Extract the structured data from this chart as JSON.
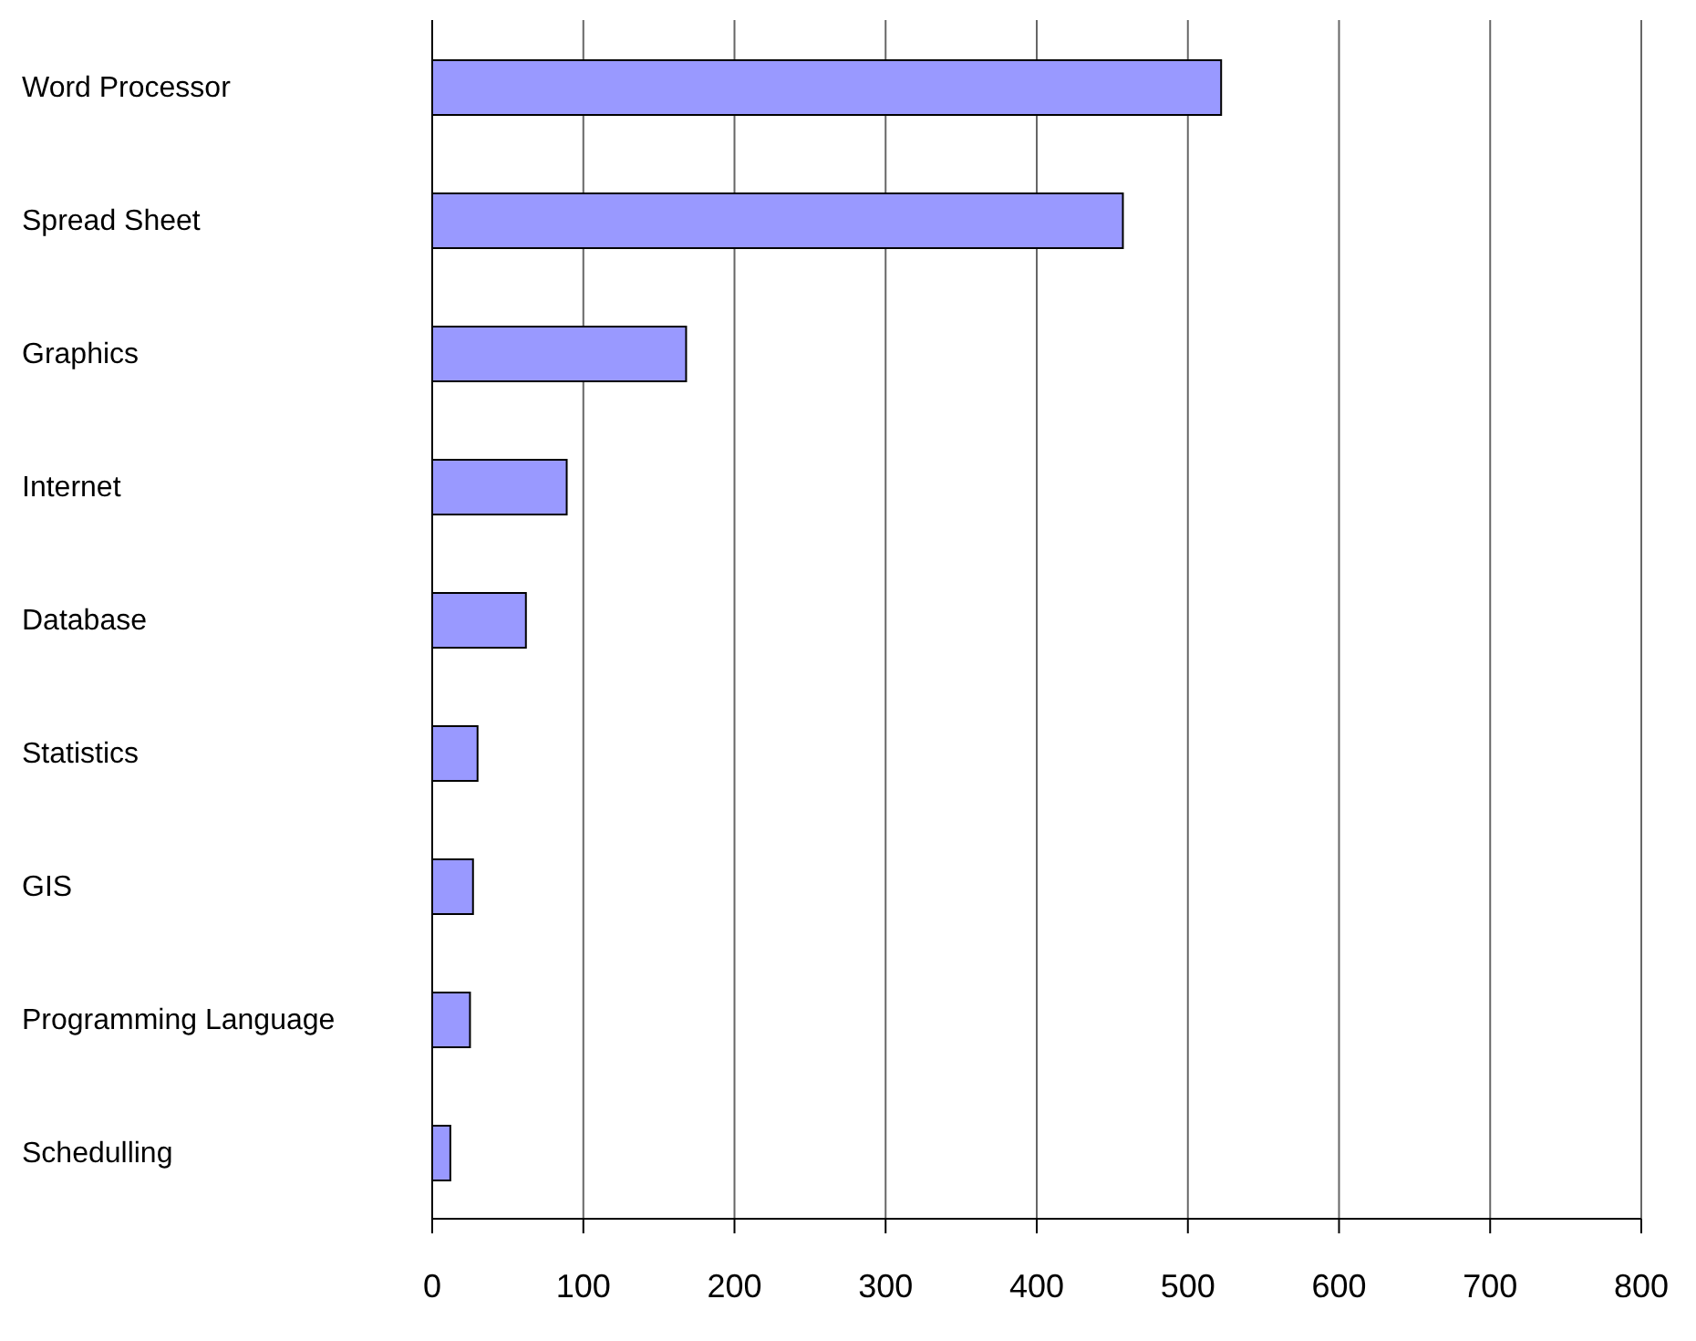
{
  "chart_data": {
    "type": "bar",
    "orientation": "horizontal",
    "categories": [
      "Word Processor",
      "Spread Sheet",
      "Graphics",
      "Internet",
      "Database",
      "Statistics",
      "GIS",
      "Programming Language",
      "Schedulling"
    ],
    "values": [
      522,
      457,
      168,
      89,
      62,
      30,
      27,
      25,
      12
    ],
    "color": "#9999ff",
    "xlim": [
      0,
      800
    ],
    "xticks": [
      0,
      100,
      200,
      300,
      400,
      500,
      600,
      700,
      800
    ],
    "grid": "x",
    "legend": false
  }
}
